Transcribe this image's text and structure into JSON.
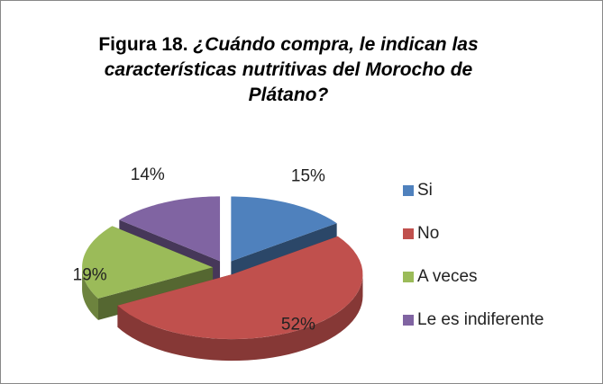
{
  "chart_data": {
    "type": "pie3d",
    "figure_label": "Figura 18.",
    "title": "¿Cuándo compra, le indican las características nutritivas del Morocho de Plátano?",
    "categories": [
      "Si",
      "No",
      "A veces",
      "Le es indiferente"
    ],
    "values": [
      15,
      52,
      19,
      14
    ],
    "value_labels": [
      "15%",
      "52%",
      "19%",
      "14%"
    ],
    "colors": [
      "#4f81bd",
      "#c0504d",
      "#9bbb59",
      "#8064a2"
    ],
    "legend": "right"
  }
}
